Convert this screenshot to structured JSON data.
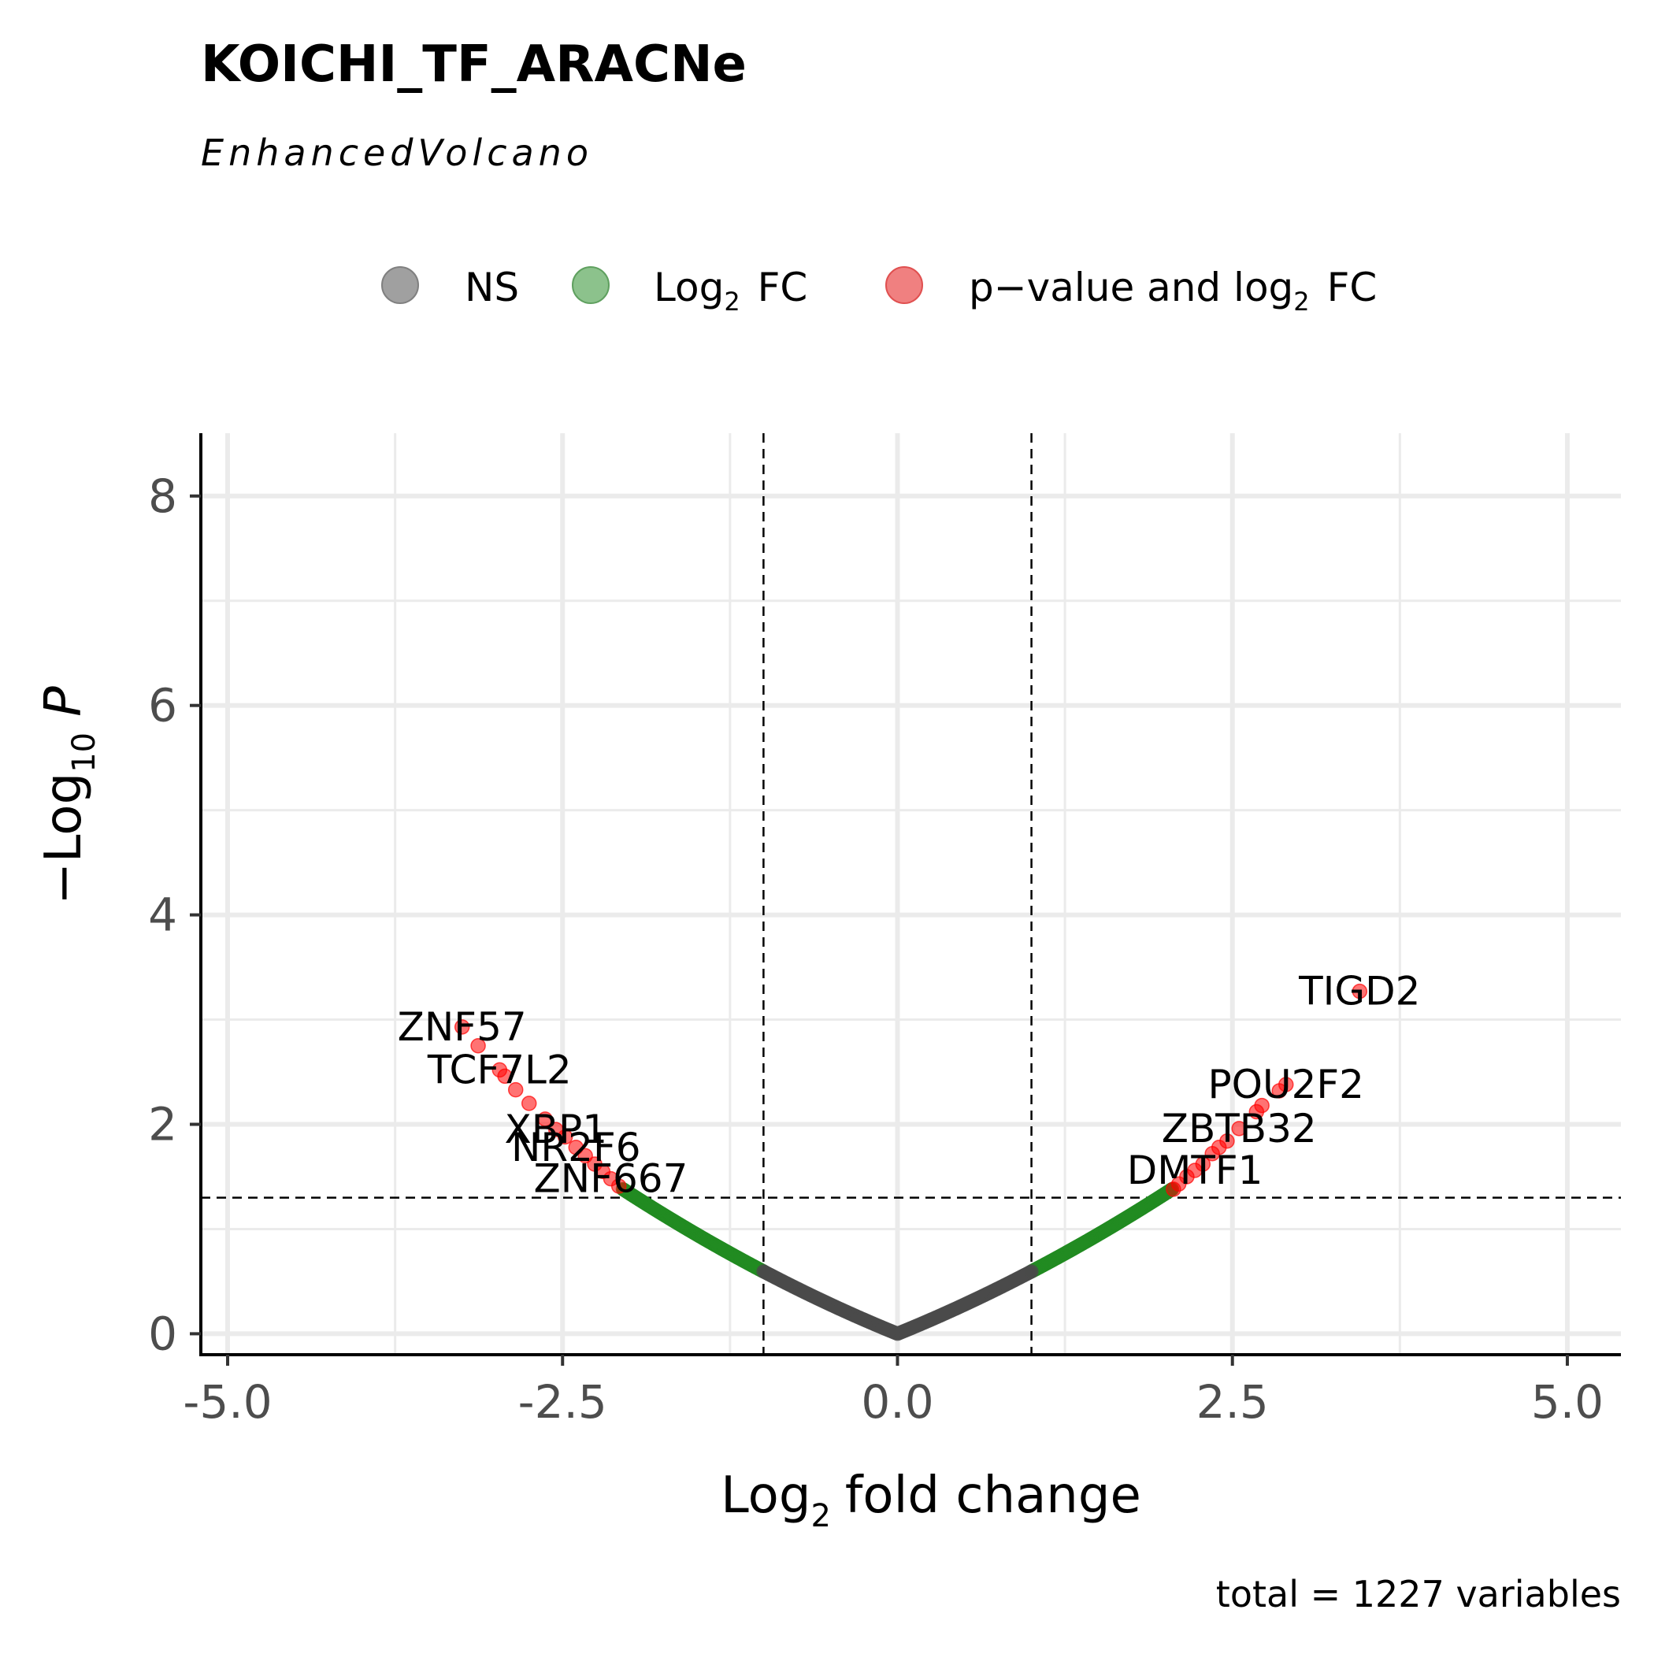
{
  "chart_data": {
    "type": "scatter",
    "title": "KOICHI_TF_ARACNe",
    "subtitle": "EnhancedVolcano",
    "xlabel_main": "Log",
    "xlabel_sub": "2",
    "xlabel_rest": "fold change",
    "ylabel_main": "−Log",
    "ylabel_sub": "10",
    "ylabel_rest": "P",
    "caption": "total = 1227 variables",
    "xlim": [
      -5.2,
      5.4
    ],
    "ylim": [
      -0.2,
      8.6
    ],
    "x_ticks": [
      -5.0,
      -2.5,
      0.0,
      2.5,
      5.0
    ],
    "x_tick_labels": [
      "-5.0",
      "-2.5",
      "0.0",
      "2.5",
      "5.0"
    ],
    "y_ticks": [
      0,
      2,
      4,
      6,
      8
    ],
    "y_tick_labels": [
      "0",
      "2",
      "4",
      "6",
      "8"
    ],
    "fc_cutoff": 1.0,
    "p_cutoff_log10": 1.3,
    "grid": true,
    "legend_position": "top",
    "legend": [
      {
        "key": "ns",
        "label_main": "NS",
        "label_sub": "",
        "label_rest": "",
        "color": "#a0a0a0",
        "stroke": "#808080"
      },
      {
        "key": "fc",
        "label_main": "Log",
        "label_sub": "2",
        "label_rest": "FC",
        "color": "#8cc28c",
        "stroke": "#5fa05f"
      },
      {
        "key": "sig",
        "label_main": "p−value  and  log",
        "label_sub": "2",
        "label_rest": "FC",
        "color": "#f08080",
        "stroke": "#e05050"
      }
    ],
    "colors": {
      "ns": "#4a4a4a",
      "fc": "#228b22",
      "sig": "#ff0000"
    },
    "curve": {
      "left_x_min": -2.05,
      "right_x_max": 2.05
    },
    "points_sig": [
      {
        "x": -3.25,
        "y": 2.93
      },
      {
        "x": -3.13,
        "y": 2.75
      },
      {
        "x": -2.97,
        "y": 2.52
      },
      {
        "x": -2.93,
        "y": 2.46
      },
      {
        "x": -2.85,
        "y": 2.33
      },
      {
        "x": -2.75,
        "y": 2.2
      },
      {
        "x": -2.63,
        "y": 2.05
      },
      {
        "x": -2.55,
        "y": 1.95
      },
      {
        "x": -2.48,
        "y": 1.88
      },
      {
        "x": -2.4,
        "y": 1.78
      },
      {
        "x": -2.33,
        "y": 1.7
      },
      {
        "x": -2.26,
        "y": 1.62
      },
      {
        "x": -2.2,
        "y": 1.55
      },
      {
        "x": -2.14,
        "y": 1.48
      },
      {
        "x": -2.08,
        "y": 1.41
      },
      {
        "x": 2.06,
        "y": 1.38
      },
      {
        "x": 2.1,
        "y": 1.43
      },
      {
        "x": 2.16,
        "y": 1.5
      },
      {
        "x": 2.22,
        "y": 1.56
      },
      {
        "x": 2.28,
        "y": 1.62
      },
      {
        "x": 2.35,
        "y": 1.72
      },
      {
        "x": 2.4,
        "y": 1.78
      },
      {
        "x": 2.46,
        "y": 1.84
      },
      {
        "x": 2.55,
        "y": 1.96
      },
      {
        "x": 2.68,
        "y": 2.12
      },
      {
        "x": 2.72,
        "y": 2.18
      },
      {
        "x": 2.85,
        "y": 2.32
      },
      {
        "x": 2.9,
        "y": 2.38
      },
      {
        "x": 3.45,
        "y": 3.27
      }
    ],
    "labels": [
      {
        "text": "ZNF57",
        "x": -3.25,
        "y": 2.93
      },
      {
        "text": "TCF7L2",
        "x": -2.97,
        "y": 2.52
      },
      {
        "text": "XBP1",
        "x": -2.55,
        "y": 1.95
      },
      {
        "text": "NR2F6",
        "x": -2.4,
        "y": 1.78
      },
      {
        "text": "ZNF667",
        "x": -2.14,
        "y": 1.48
      },
      {
        "text": "TIGD2",
        "x": 3.45,
        "y": 3.27
      },
      {
        "text": "POU2F2",
        "x": 2.9,
        "y": 2.38
      },
      {
        "text": "ZBTB32",
        "x": 2.55,
        "y": 1.96
      },
      {
        "text": "DMTF1",
        "x": 2.22,
        "y": 1.56
      }
    ]
  }
}
